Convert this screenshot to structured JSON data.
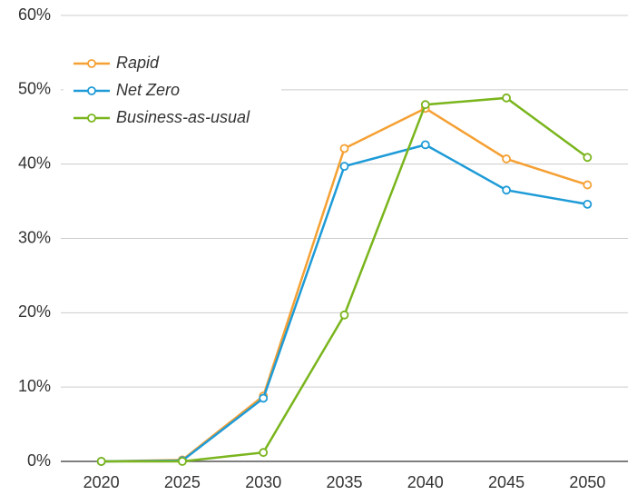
{
  "chart_data": {
    "type": "line",
    "categories": [
      "2020",
      "2025",
      "2030",
      "2035",
      "2040",
      "2045",
      "2050"
    ],
    "series": [
      {
        "name": "Rapid",
        "color": "#f5a033",
        "values": [
          0,
          0.2,
          8.8,
          42.1,
          47.5,
          40.7,
          37.2
        ]
      },
      {
        "name": "Net Zero",
        "color": "#1e9bd7",
        "values": [
          0,
          0.1,
          8.5,
          39.7,
          42.6,
          36.5,
          34.6
        ]
      },
      {
        "name": "Business-as-usual",
        "color": "#7ab51d",
        "values": [
          0,
          0,
          1.2,
          19.7,
          48,
          48.9,
          40.9
        ]
      }
    ],
    "ylim": [
      0,
      60
    ],
    "yticks": [
      {
        "value": 0,
        "label": "0%"
      },
      {
        "value": 10,
        "label": "10%"
      },
      {
        "value": 20,
        "label": "20%"
      },
      {
        "value": 30,
        "label": "30%"
      },
      {
        "value": 40,
        "label": "40%"
      },
      {
        "value": 50,
        "label": "50%"
      },
      {
        "value": 60,
        "label": "60%"
      }
    ],
    "grid": true,
    "legend": "upper left"
  }
}
